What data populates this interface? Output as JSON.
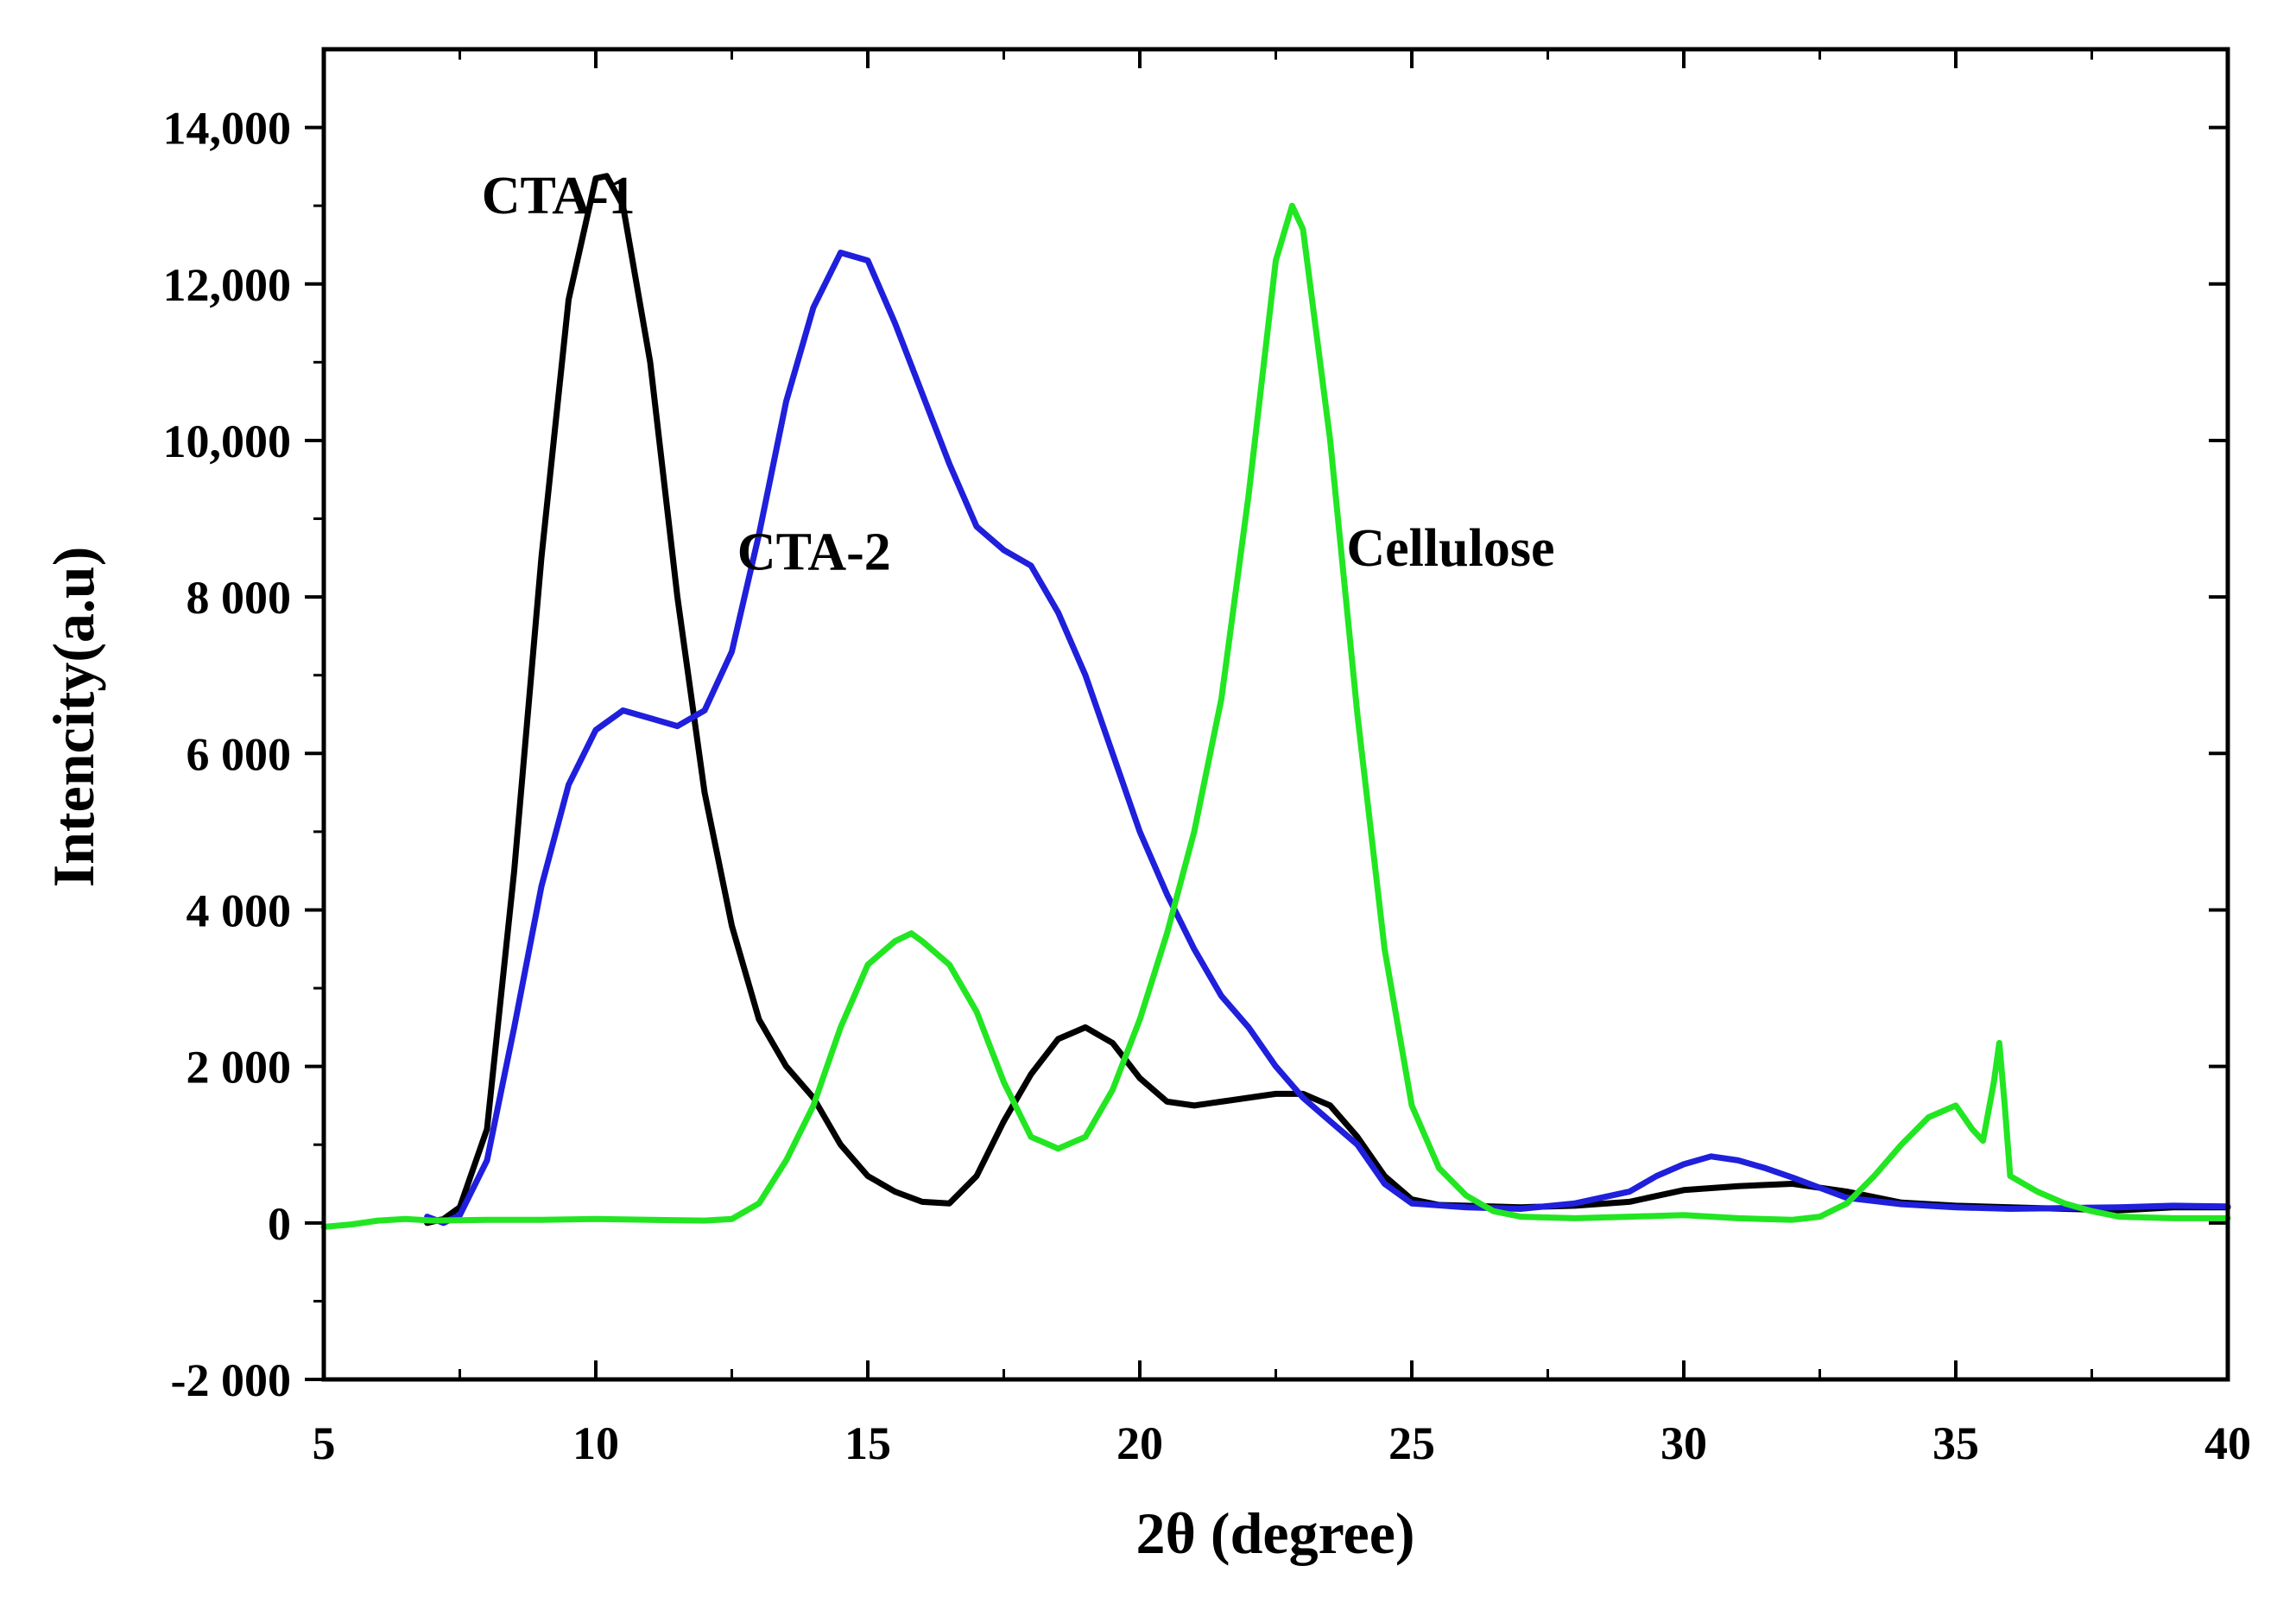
{
  "chart_data": {
    "type": "line",
    "title": "",
    "xlabel": "2θ (degree)",
    "ylabel": "Intencity(a.u)",
    "xlim": [
      5,
      40
    ],
    "ylim": [
      -2000,
      15000
    ],
    "grid": false,
    "legend": "inline labels",
    "x_ticks": [
      5,
      10,
      15,
      20,
      25,
      30,
      35,
      40
    ],
    "x_tick_labels": [
      "5",
      "10",
      "15",
      "20",
      "25",
      "30",
      "35",
      "40"
    ],
    "y_ticks": [
      -2000,
      0,
      2000,
      4000,
      6000,
      8000,
      10000,
      12000,
      14000
    ],
    "y_tick_labels": [
      "-2 000",
      "0",
      "2 000",
      "4 000",
      "6 000",
      "8 000",
      "10,000",
      "12,000",
      "14,000"
    ],
    "series": [
      {
        "name": "CTA-1",
        "color": "#000000",
        "label_at": [
          7.9,
          12900
        ],
        "points": [
          [
            6.9,
            0
          ],
          [
            7.2,
            50
          ],
          [
            7.5,
            200
          ],
          [
            8.0,
            1200
          ],
          [
            8.5,
            4500
          ],
          [
            9.0,
            8500
          ],
          [
            9.5,
            11800
          ],
          [
            10.0,
            13350
          ],
          [
            10.2,
            13380
          ],
          [
            10.5,
            13000
          ],
          [
            11.0,
            11000
          ],
          [
            11.5,
            8000
          ],
          [
            12.0,
            5500
          ],
          [
            12.5,
            3800
          ],
          [
            13.0,
            2600
          ],
          [
            13.5,
            2000
          ],
          [
            14.0,
            1600
          ],
          [
            14.5,
            1000
          ],
          [
            15.0,
            600
          ],
          [
            15.5,
            400
          ],
          [
            16.0,
            270
          ],
          [
            16.5,
            250
          ],
          [
            17.0,
            600
          ],
          [
            17.5,
            1300
          ],
          [
            18.0,
            1900
          ],
          [
            18.5,
            2350
          ],
          [
            19.0,
            2500
          ],
          [
            19.5,
            2300
          ],
          [
            20.0,
            1850
          ],
          [
            20.5,
            1550
          ],
          [
            21.0,
            1500
          ],
          [
            21.5,
            1550
          ],
          [
            22.0,
            1600
          ],
          [
            22.5,
            1650
          ],
          [
            23.0,
            1650
          ],
          [
            23.5,
            1500
          ],
          [
            24.0,
            1100
          ],
          [
            24.5,
            600
          ],
          [
            25.0,
            300
          ],
          [
            25.5,
            230
          ],
          [
            26.0,
            220
          ],
          [
            27.0,
            200
          ],
          [
            28.0,
            220
          ],
          [
            29.0,
            270
          ],
          [
            30.0,
            420
          ],
          [
            31.0,
            470
          ],
          [
            32.0,
            500
          ],
          [
            33.0,
            400
          ],
          [
            34.0,
            260
          ],
          [
            35.0,
            220
          ],
          [
            36.0,
            200
          ],
          [
            37.0,
            180
          ],
          [
            38.0,
            160
          ],
          [
            39.0,
            200
          ],
          [
            40.0,
            200
          ]
        ]
      },
      {
        "name": "CTA-2",
        "color": "#1f1fdc",
        "label_at": [
          12.6,
          8350
        ],
        "points": [
          [
            6.9,
            80
          ],
          [
            7.2,
            0
          ],
          [
            7.5,
            100
          ],
          [
            8.0,
            800
          ],
          [
            8.5,
            2500
          ],
          [
            9.0,
            4300
          ],
          [
            9.5,
            5600
          ],
          [
            10.0,
            6300
          ],
          [
            10.5,
            6550
          ],
          [
            11.0,
            6450
          ],
          [
            11.5,
            6350
          ],
          [
            12.0,
            6550
          ],
          [
            12.5,
            7300
          ],
          [
            13.0,
            8800
          ],
          [
            13.5,
            10500
          ],
          [
            14.0,
            11700
          ],
          [
            14.5,
            12400
          ],
          [
            15.0,
            12300
          ],
          [
            15.5,
            11500
          ],
          [
            16.0,
            10600
          ],
          [
            16.5,
            9700
          ],
          [
            17.0,
            8900
          ],
          [
            17.5,
            8600
          ],
          [
            18.0,
            8400
          ],
          [
            18.5,
            7800
          ],
          [
            19.0,
            7000
          ],
          [
            19.5,
            6000
          ],
          [
            20.0,
            5000
          ],
          [
            20.5,
            4200
          ],
          [
            21.0,
            3500
          ],
          [
            21.5,
            2900
          ],
          [
            22.0,
            2500
          ],
          [
            22.5,
            2000
          ],
          [
            23.0,
            1600
          ],
          [
            23.5,
            1300
          ],
          [
            24.0,
            1000
          ],
          [
            24.5,
            500
          ],
          [
            25.0,
            250
          ],
          [
            26.0,
            200
          ],
          [
            27.0,
            180
          ],
          [
            28.0,
            250
          ],
          [
            29.0,
            400
          ],
          [
            29.5,
            600
          ],
          [
            30.0,
            750
          ],
          [
            30.5,
            850
          ],
          [
            31.0,
            800
          ],
          [
            31.5,
            700
          ],
          [
            32.0,
            580
          ],
          [
            32.5,
            450
          ],
          [
            33.0,
            320
          ],
          [
            34.0,
            240
          ],
          [
            35.0,
            200
          ],
          [
            36.0,
            180
          ],
          [
            37.0,
            190
          ],
          [
            38.0,
            200
          ],
          [
            39.0,
            220
          ],
          [
            40.0,
            210
          ]
        ]
      },
      {
        "name": "Cellulose",
        "color": "#22e622",
        "label_at": [
          23.8,
          8400
        ],
        "points": [
          [
            5.0,
            -50
          ],
          [
            5.5,
            -20
          ],
          [
            6.0,
            30
          ],
          [
            6.5,
            50
          ],
          [
            7.0,
            30
          ],
          [
            8.0,
            40
          ],
          [
            9.0,
            40
          ],
          [
            10.0,
            50
          ],
          [
            11.0,
            40
          ],
          [
            12.0,
            30
          ],
          [
            12.5,
            50
          ],
          [
            13.0,
            250
          ],
          [
            13.5,
            800
          ],
          [
            14.0,
            1500
          ],
          [
            14.5,
            2500
          ],
          [
            15.0,
            3300
          ],
          [
            15.5,
            3600
          ],
          [
            15.8,
            3700
          ],
          [
            16.0,
            3600
          ],
          [
            16.5,
            3300
          ],
          [
            17.0,
            2700
          ],
          [
            17.5,
            1800
          ],
          [
            18.0,
            1100
          ],
          [
            18.5,
            950
          ],
          [
            19.0,
            1100
          ],
          [
            19.5,
            1700
          ],
          [
            20.0,
            2600
          ],
          [
            20.5,
            3700
          ],
          [
            21.0,
            5000
          ],
          [
            21.5,
            6700
          ],
          [
            22.0,
            9300
          ],
          [
            22.5,
            12300
          ],
          [
            22.8,
            13000
          ],
          [
            23.0,
            12700
          ],
          [
            23.5,
            10000
          ],
          [
            24.0,
            6500
          ],
          [
            24.5,
            3500
          ],
          [
            25.0,
            1500
          ],
          [
            25.5,
            700
          ],
          [
            26.0,
            350
          ],
          [
            26.5,
            150
          ],
          [
            27.0,
            80
          ],
          [
            28.0,
            60
          ],
          [
            29.0,
            80
          ],
          [
            30.0,
            100
          ],
          [
            31.0,
            60
          ],
          [
            32.0,
            40
          ],
          [
            32.5,
            80
          ],
          [
            33.0,
            250
          ],
          [
            33.5,
            600
          ],
          [
            34.0,
            1000
          ],
          [
            34.5,
            1350
          ],
          [
            35.0,
            1500
          ],
          [
            35.3,
            1200
          ],
          [
            35.5,
            1050
          ],
          [
            35.7,
            1800
          ],
          [
            35.8,
            2300
          ],
          [
            35.9,
            1500
          ],
          [
            36.0,
            600
          ],
          [
            36.5,
            400
          ],
          [
            37.0,
            250
          ],
          [
            37.5,
            150
          ],
          [
            38.0,
            80
          ],
          [
            39.0,
            60
          ],
          [
            40.0,
            60
          ]
        ]
      }
    ]
  }
}
